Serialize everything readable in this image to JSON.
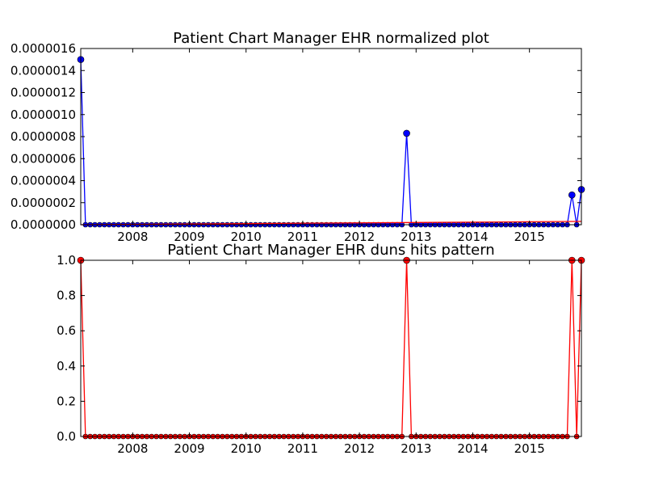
{
  "chart_data": [
    {
      "type": "line",
      "title": "Patient Chart Manager EHR normalized plot",
      "xlabel": "",
      "ylabel": "",
      "x_start": "2007-02",
      "x_end": "2015-12",
      "x_ticks": [
        "2008",
        "2009",
        "2010",
        "2011",
        "2012",
        "2013",
        "2014",
        "2015"
      ],
      "y_ticks": [
        "0.0000000",
        "0.0000002",
        "0.0000004",
        "0.0000006",
        "0.0000008",
        "0.0000010",
        "0.0000012",
        "0.0000014",
        "0.0000016"
      ],
      "ylim": [
        0,
        1.6e-06
      ],
      "grid": false,
      "series": [
        {
          "color": "#0000ff",
          "marker": "circle",
          "points": [
            {
              "x": "2007-02",
              "y": 1.5e-06
            },
            {
              "x": "2012-11",
              "y": 8.3e-07
            },
            {
              "x": "2015-10",
              "y": 2.7e-07
            },
            {
              "x": "2015-12",
              "y": 3.2e-07
            }
          ],
          "default_y": 0
        },
        {
          "color": "#ff0000",
          "marker": "none",
          "points": [
            {
              "x": "2007-02",
              "y": 0
            },
            {
              "x": "2015-12",
              "y": 3e-08
            }
          ],
          "default_y": 0
        }
      ]
    },
    {
      "type": "line",
      "title": "Patient Chart Manager EHR duns hits pattern",
      "xlabel": "",
      "ylabel": "",
      "x_start": "2007-02",
      "x_end": "2015-12",
      "x_ticks": [
        "2008",
        "2009",
        "2010",
        "2011",
        "2012",
        "2013",
        "2014",
        "2015"
      ],
      "y_ticks": [
        "0.0",
        "0.2",
        "0.4",
        "0.6",
        "0.8",
        "1.0"
      ],
      "ylim": [
        0,
        1.0
      ],
      "grid": false,
      "series": [
        {
          "color": "#ff0000",
          "marker": "circle",
          "points": [
            {
              "x": "2007-02",
              "y": 1
            },
            {
              "x": "2012-11",
              "y": 1
            },
            {
              "x": "2015-10",
              "y": 1
            },
            {
              "x": "2015-12",
              "y": 1
            }
          ],
          "default_y": 0
        }
      ]
    }
  ]
}
